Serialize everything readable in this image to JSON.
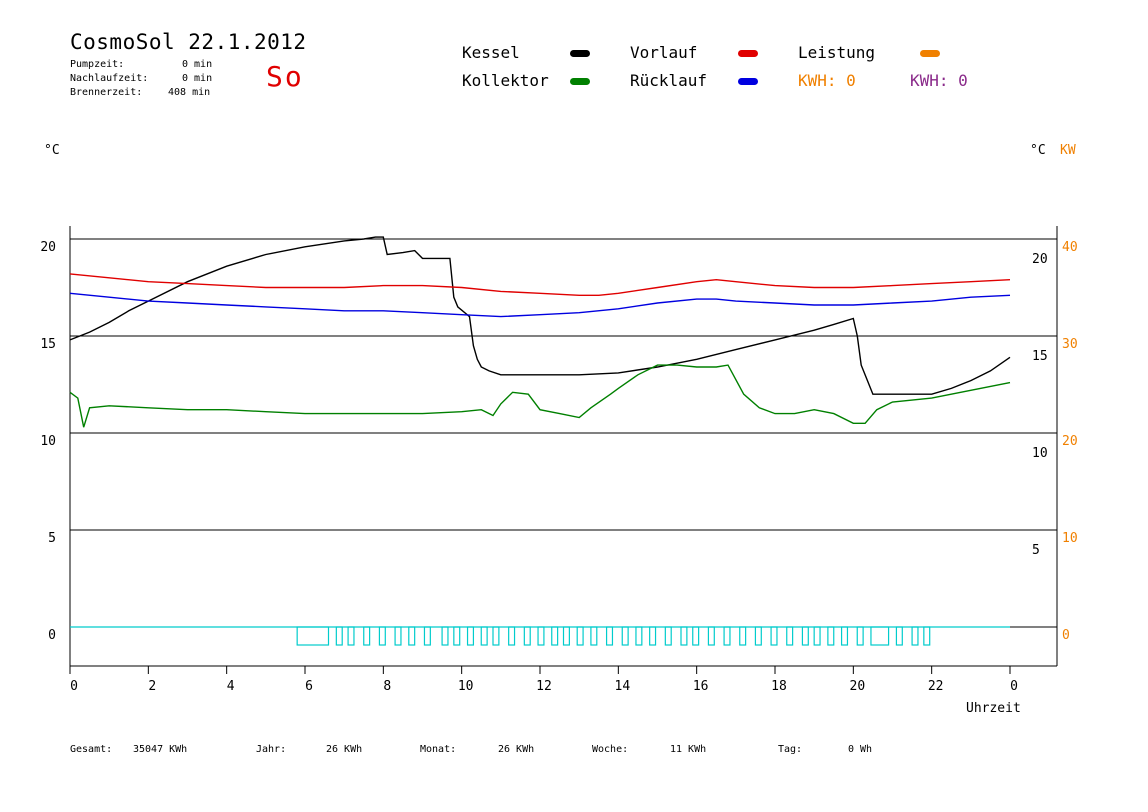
{
  "header": {
    "title": "CosmoSol 22.1.2012",
    "pump_label": "Pumpzeit:",
    "pump_value": "0 min",
    "nachlauf_label": "Nachlaufzeit:",
    "nachlauf_value": "0 min",
    "brenner_label": "Brennerzeit:",
    "brenner_value": "408 min",
    "day": "So"
  },
  "legend": {
    "kessel": "Kessel",
    "kollektor": "Kollektor",
    "vorlauf": "Vorlauf",
    "ruecklauf": "Rücklauf",
    "leistung": "Leistung",
    "kwh1": "KWH: 0",
    "kwh2": "KWH: 0"
  },
  "colors": {
    "kessel": "#000000",
    "kollektor": "#008000",
    "vorlauf": "#e00000",
    "ruecklauf": "#0000e0",
    "leistung": "#f08000",
    "kwh2": "#8a2a8a",
    "pump": "#00cccc"
  },
  "axes": {
    "left_unit": "°C",
    "right_unit": "°C",
    "right_unit2": "KW",
    "xlabel": "Uhrzeit"
  },
  "footer": {
    "gesamt_label": "Gesamt:",
    "gesamt_value": "35047 KWh",
    "jahr_label": "Jahr:",
    "jahr_value": "26 KWh",
    "monat_label": "Monat:",
    "monat_value": "26 KWh",
    "woche_label": "Woche:",
    "woche_value": "11 KWh",
    "tag_label": "Tag:",
    "tag_value": "0 Wh"
  },
  "chart_data": {
    "type": "line",
    "title": "CosmoSol 22.1.2012",
    "xlabel": "Uhrzeit",
    "ylabel": "°C",
    "xlim": [
      0,
      24
    ],
    "ylim": [
      -3,
      21
    ],
    "x_ticks": [
      "0",
      "2",
      "4",
      "6",
      "8",
      "10",
      "12",
      "14",
      "16",
      "18",
      "20",
      "22",
      "0"
    ],
    "y_ticks_left": [
      0,
      5,
      10,
      15,
      20
    ],
    "y_ticks_right_c": [
      5,
      10,
      15,
      20
    ],
    "y_ticks_right_kw": [
      0,
      10,
      20,
      30,
      40
    ],
    "grid": true,
    "series": [
      {
        "name": "Kessel",
        "color": "#000000",
        "x": [
          0,
          0.5,
          1,
          1.5,
          2,
          3,
          4,
          5,
          6,
          7,
          7.5,
          7.8,
          8,
          8.1,
          8.5,
          8.8,
          9,
          9.7,
          9.8,
          9.9,
          10.2,
          10.3,
          10.4,
          10.5,
          10.7,
          11,
          12,
          13,
          14,
          15,
          16,
          17,
          18,
          19,
          19.5,
          20,
          20.1,
          20.2,
          20.4,
          20.5,
          20.8,
          22,
          22.5,
          23,
          23.5,
          24
        ],
        "y": [
          14.8,
          15.2,
          15.7,
          16.3,
          16.8,
          17.8,
          18.6,
          19.2,
          19.6,
          19.9,
          20.0,
          20.1,
          20.1,
          19.2,
          19.3,
          19.4,
          19.0,
          19.0,
          17.0,
          16.5,
          16.0,
          14.5,
          13.8,
          13.4,
          13.2,
          13.0,
          13.0,
          13.0,
          13.1,
          13.4,
          13.8,
          14.3,
          14.8,
          15.3,
          15.6,
          15.9,
          15.0,
          13.5,
          12.5,
          12.0,
          12.0,
          12.0,
          12.3,
          12.7,
          13.2,
          13.9
        ]
      },
      {
        "name": "Kollektor",
        "color": "#008000",
        "x": [
          0,
          0.2,
          0.35,
          0.5,
          1,
          2,
          3,
          4,
          5,
          6,
          7,
          8,
          9,
          10,
          10.5,
          10.8,
          11,
          11.3,
          11.7,
          12,
          12.5,
          13,
          13.3,
          13.8,
          14,
          14.5,
          15,
          15.5,
          16,
          16.5,
          16.8,
          17.2,
          17.6,
          18,
          18.5,
          19,
          19.5,
          20,
          20.3,
          20.6,
          21,
          22,
          23,
          24
        ],
        "y": [
          12.1,
          11.8,
          10.3,
          11.3,
          11.4,
          11.3,
          11.2,
          11.2,
          11.1,
          11.0,
          11.0,
          11.0,
          11.0,
          11.1,
          11.2,
          10.9,
          11.5,
          12.1,
          12.0,
          11.2,
          11.0,
          10.8,
          11.3,
          12.0,
          12.3,
          13.0,
          13.5,
          13.5,
          13.4,
          13.4,
          13.5,
          12.0,
          11.3,
          11.0,
          11.0,
          11.2,
          11.0,
          10.5,
          10.5,
          11.2,
          11.6,
          11.8,
          12.2,
          12.6
        ]
      },
      {
        "name": "Vorlauf",
        "color": "#e00000",
        "x": [
          0,
          1,
          2,
          3,
          4,
          5,
          6,
          7,
          8,
          9,
          10,
          11,
          12,
          13,
          13.5,
          14,
          15,
          16,
          16.5,
          17,
          18,
          19,
          20,
          21,
          22,
          23,
          24
        ],
        "y": [
          18.2,
          18.0,
          17.8,
          17.7,
          17.6,
          17.5,
          17.5,
          17.5,
          17.6,
          17.6,
          17.5,
          17.3,
          17.2,
          17.1,
          17.1,
          17.2,
          17.5,
          17.8,
          17.9,
          17.8,
          17.6,
          17.5,
          17.5,
          17.6,
          17.7,
          17.8,
          17.9
        ]
      },
      {
        "name": "Rücklauf",
        "color": "#0000e0",
        "x": [
          0,
          1,
          2,
          3,
          4,
          5,
          6,
          7,
          8,
          9,
          10,
          11,
          12,
          13,
          14,
          15,
          16,
          16.5,
          17,
          18,
          19,
          20,
          21,
          22,
          23,
          24
        ],
        "y": [
          17.2,
          17.0,
          16.8,
          16.7,
          16.6,
          16.5,
          16.4,
          16.3,
          16.3,
          16.2,
          16.1,
          16.0,
          16.1,
          16.2,
          16.4,
          16.7,
          16.9,
          16.9,
          16.8,
          16.7,
          16.6,
          16.6,
          16.7,
          16.8,
          17.0,
          17.1
        ]
      },
      {
        "name": "Pumpe",
        "color": "#00cccc",
        "type": "step",
        "on_intervals": [
          [
            5.8,
            6.6
          ],
          [
            6.8,
            6.95
          ],
          [
            7.1,
            7.25
          ],
          [
            7.5,
            7.65
          ],
          [
            7.9,
            8.05
          ],
          [
            8.3,
            8.45
          ],
          [
            8.65,
            8.8
          ],
          [
            9.05,
            9.2
          ],
          [
            9.5,
            9.65
          ],
          [
            9.8,
            9.95
          ],
          [
            10.15,
            10.3
          ],
          [
            10.5,
            10.65
          ],
          [
            10.8,
            10.95
          ],
          [
            11.2,
            11.35
          ],
          [
            11.6,
            11.75
          ],
          [
            11.95,
            12.1
          ],
          [
            12.3,
            12.45
          ],
          [
            12.6,
            12.75
          ],
          [
            12.95,
            13.1
          ],
          [
            13.3,
            13.45
          ],
          [
            13.7,
            13.85
          ],
          [
            14.1,
            14.25
          ],
          [
            14.45,
            14.6
          ],
          [
            14.8,
            14.95
          ],
          [
            15.2,
            15.35
          ],
          [
            15.6,
            15.75
          ],
          [
            15.9,
            16.05
          ],
          [
            16.3,
            16.45
          ],
          [
            16.7,
            16.85
          ],
          [
            17.1,
            17.25
          ],
          [
            17.5,
            17.65
          ],
          [
            17.9,
            18.05
          ],
          [
            18.3,
            18.45
          ],
          [
            18.7,
            18.85
          ],
          [
            19.0,
            19.15
          ],
          [
            19.35,
            19.5
          ],
          [
            19.7,
            19.85
          ],
          [
            20.1,
            20.25
          ],
          [
            20.45,
            20.9
          ],
          [
            21.1,
            21.25
          ],
          [
            21.5,
            21.65
          ],
          [
            21.8,
            21.95
          ]
        ]
      }
    ]
  }
}
